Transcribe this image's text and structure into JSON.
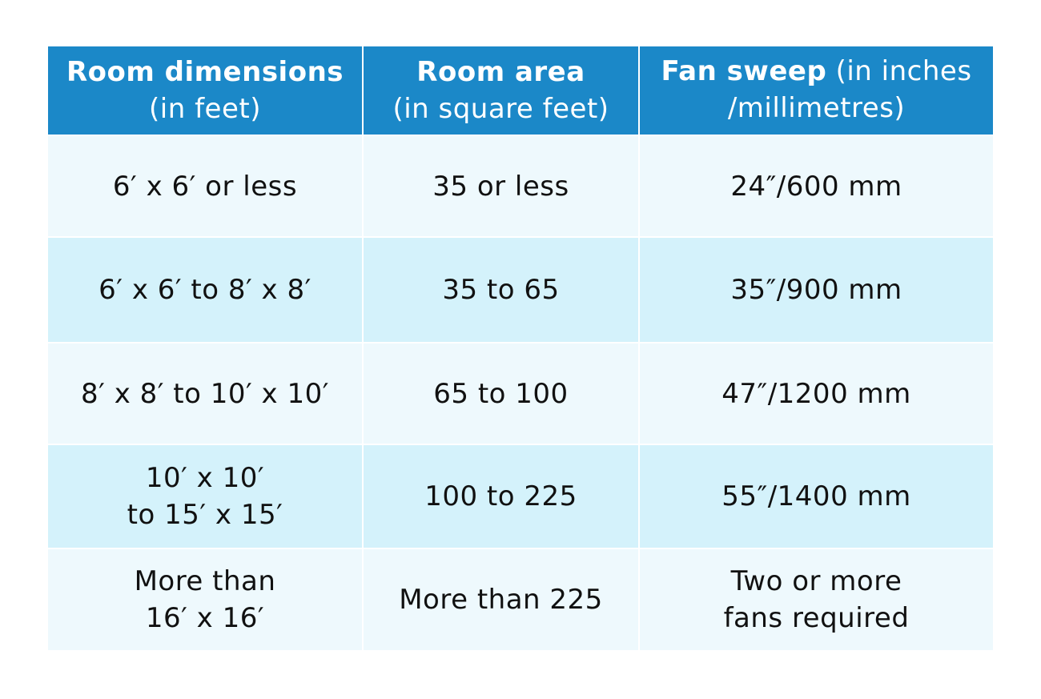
{
  "table": {
    "header": [
      {
        "title": "Room dimensions",
        "note": "(in feet)"
      },
      {
        "title": "Room area",
        "note": "(in square feet)"
      },
      {
        "title": "Fan sweep",
        "note": "(in inches\n/millimetres)"
      }
    ],
    "rows": [
      [
        "6′ x 6′ or less",
        "35 or less",
        "24″/600 mm"
      ],
      [
        "6′ x 6′ to 8′ x 8′",
        "35 to 65",
        "35″/900 mm"
      ],
      [
        "8′ x 8′ to 10′ x 10′",
        "65 to 100",
        "47″/1200 mm"
      ],
      [
        "10′ x 10′\nto 15′ x 15′",
        "100 to 225",
        "55″/1400 mm"
      ],
      [
        "More than\n16′ x 16′",
        "More than 225",
        "Two or more\nfans required"
      ]
    ]
  }
}
